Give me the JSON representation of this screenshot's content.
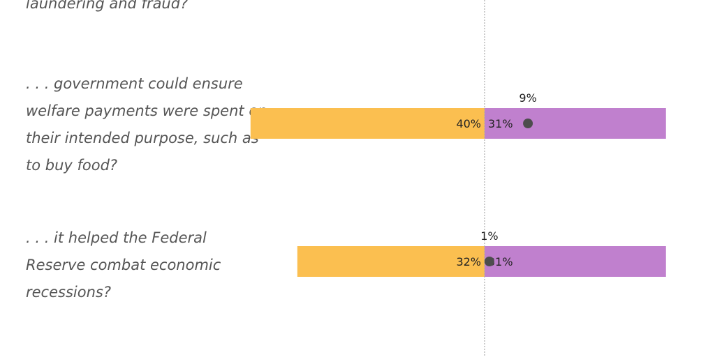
{
  "colors": {
    "left_bar": "#FBBF50",
    "right_bar": "#C080CE",
    "dot": "#4D4D4D",
    "center_line": "#AAAAAA"
  },
  "questions": [
    {
      "text": "laundering and fraud?"
    },
    {
      "text": ". . . government could ensure\nwelfare payments were spent on\ntheir intended purpose, such as\nto buy food?"
    },
    {
      "text": ". . . it helped the Federal\nReserve combat economic\nrecessions?"
    }
  ],
  "chart_data": {
    "type": "bar",
    "categories": [
      "laundering and fraud?",
      ". . . government could ensure welfare payments were spent on their intended purpose, such as to buy food?",
      ". . . it helped the Federal Reserve combat economic recessions?"
    ],
    "series": [
      {
        "values": [
          null,
          40,
          32
        ],
        "labels": [
          "",
          "40%",
          "32%"
        ]
      },
      {
        "values": [
          null,
          31,
          31
        ],
        "labels": [
          "",
          "31%",
          "31%"
        ]
      },
      {
        "values": [
          null,
          9,
          1
        ],
        "labels": [
          "",
          "9%",
          "1%"
        ]
      }
    ],
    "diverging": true
  }
}
